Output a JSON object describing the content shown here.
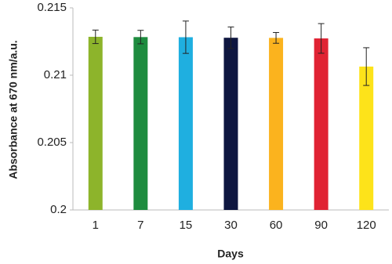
{
  "chart_data": {
    "type": "bar",
    "y_label": "Absorbance at 670 nm/a.u.",
    "x_label": "Days",
    "categories": [
      "1",
      "7",
      "15",
      "30",
      "60",
      "90",
      "120"
    ],
    "values": [
      0.21285,
      0.21283,
      0.21282,
      0.21278,
      0.21277,
      0.21273,
      0.21064
    ],
    "errors": [
      0.0005,
      0.0005,
      0.0012,
      0.0008,
      0.0004,
      0.0011,
      0.0014
    ],
    "colors": [
      "#8db42b",
      "#1e8c3f",
      "#1fafe0",
      "#0e1640",
      "#fbb31e",
      "#e02333",
      "#fde31a"
    ],
    "ylim": [
      0.2,
      0.215
    ],
    "yticks": [
      0.2,
      0.205,
      0.21,
      0.215
    ],
    "grid": false
  }
}
